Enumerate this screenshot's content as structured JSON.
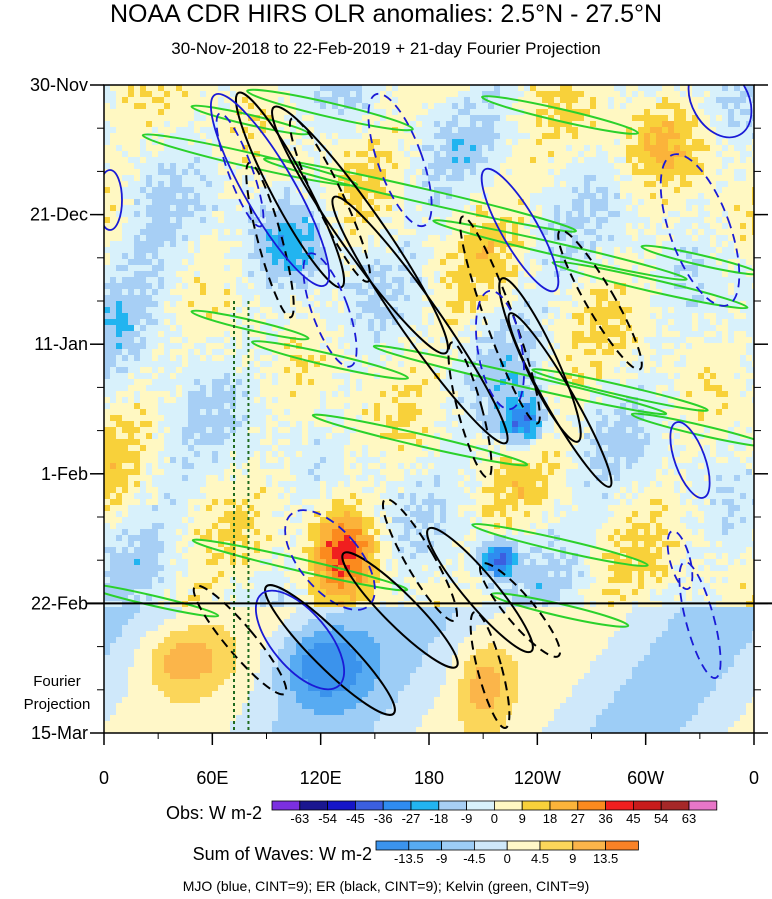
{
  "title": "NOAA CDR HIRS OLR anomalies: 2.5°N - 27.5°N",
  "subtitle": "30-Nov-2018 to 22-Feb-2019 + 21-day Fourier Projection",
  "projection_label": [
    "Fourier",
    "Projection"
  ],
  "footnote": "MJO (blue, CINT=9); ER (black, CINT=9); Kelvin (green, CINT=9)",
  "colors": {
    "mjo": "#1a1ad6",
    "er": "#000000",
    "kelvin": "#2bd12b",
    "projection_divider": "#000000",
    "longitude_markers": "#1f6b1f"
  },
  "chart_data": {
    "type": "heatmap",
    "title": "NOAA CDR HIRS OLR anomalies: 2.5°N - 27.5°N",
    "subtitle": "30-Nov-2018 to 22-Feb-2019 + 21-day Fourier Projection",
    "x_axis": {
      "quantity": "longitude",
      "ticks": [
        "0",
        "60E",
        "120E",
        "180",
        "120W",
        "60W",
        "0"
      ],
      "tick_values_deg_east": [
        0,
        60,
        120,
        180,
        240,
        300,
        360
      ],
      "range_deg_east": [
        0,
        360
      ]
    },
    "y_axis": {
      "quantity": "date",
      "ticks": [
        "30-Nov",
        "21-Dec",
        "11-Jan",
        "1-Feb",
        "22-Feb",
        "15-Mar"
      ],
      "tick_dates": [
        "2018-11-30",
        "2018-12-21",
        "2019-01-11",
        "2019-02-01",
        "2019-02-22",
        "2019-03-15"
      ],
      "range": [
        "2018-11-30",
        "2019-03-15"
      ],
      "reversed": true
    },
    "observation_end_date": "2019-02-22",
    "observed_colorbar": {
      "label": "Obs: W m-2",
      "levels": [
        -63,
        -54,
        -45,
        -36,
        -27,
        -18,
        -9,
        0,
        9,
        18,
        27,
        36,
        45,
        54,
        63
      ],
      "colors": [
        "#7b2fe0",
        "#1a1690",
        "#1515c8",
        "#3b5fe0",
        "#2f8cf0",
        "#22b4f0",
        "#a7cff5",
        "#d8f1fb",
        "#fff8c2",
        "#f8d13a",
        "#fbb33a",
        "#fb8a1e",
        "#f01f1f",
        "#c81c1c",
        "#a52828",
        "#e876c8"
      ]
    },
    "waves_colorbar": {
      "label": "Sum of Waves: W m-2",
      "levels": [
        -13.5,
        -9,
        -4.5,
        0,
        4.5,
        9,
        13.5
      ],
      "colors": [
        "#3b93ec",
        "#57abf2",
        "#9dcdf6",
        "#cfe8fa",
        "#fff7c8",
        "#fbd65a",
        "#fbb54a",
        "#f98226"
      ]
    },
    "overlays": [
      {
        "name": "MJO",
        "color": "blue",
        "cint": 9
      },
      {
        "name": "ER",
        "color": "black",
        "cint": 9
      },
      {
        "name": "Kelvin",
        "color": "green",
        "cint": 9
      }
    ],
    "reference_longitudes_deg_east": [
      72,
      80
    ]
  }
}
